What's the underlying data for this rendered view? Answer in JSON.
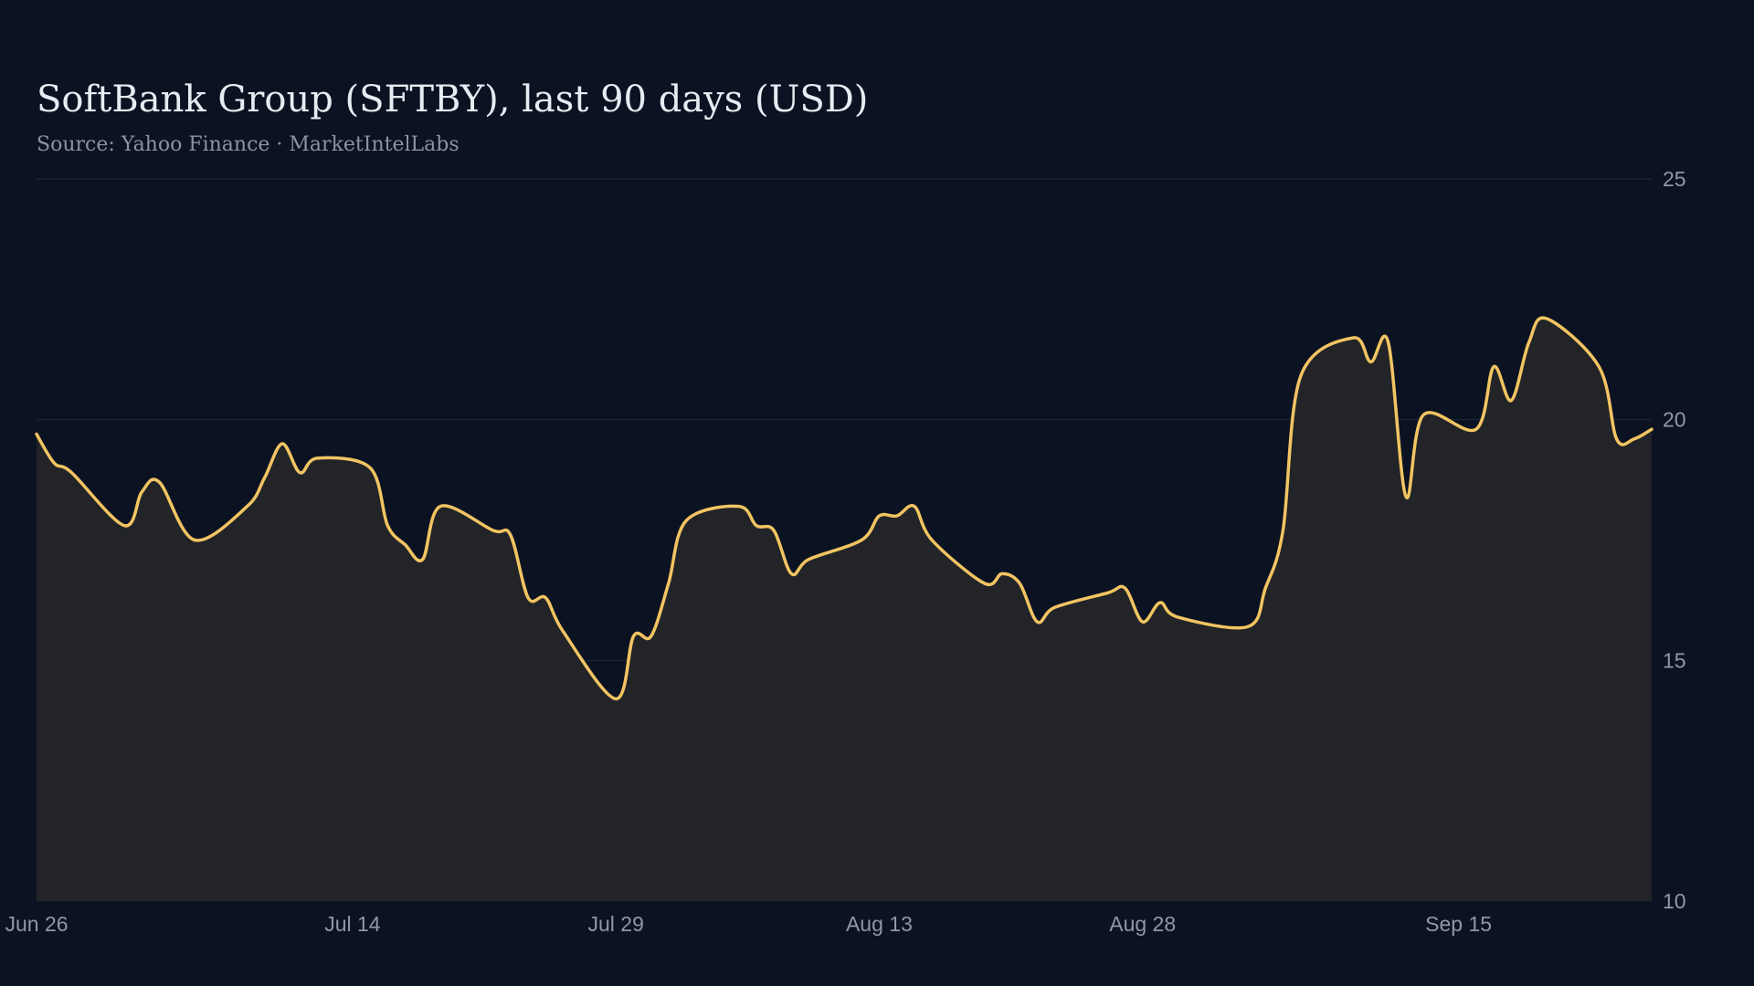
{
  "title": "SoftBank Group (SFTBY), last 90 days (USD)",
  "subtitle": "Source: Yahoo Finance · MarketIntelLabs",
  "colors": {
    "background": "#0b1222",
    "line": "#f2c462",
    "area": "#222427",
    "grid": "#1e2a36",
    "tick_text": "#8f98aa"
  },
  "chart_data": {
    "type": "area",
    "title": "SoftBank Group (SFTBY), last 90 days (USD)",
    "subtitle": "Source: Yahoo Finance · MarketIntelLabs",
    "xlabel": "",
    "ylabel": "",
    "ylim": [
      10,
      25
    ],
    "yticks": [
      10,
      15,
      20,
      25
    ],
    "y_axis_side": "right",
    "xlim": [
      "Jun 26",
      "Sep 26"
    ],
    "xticks": [
      "Jun 26",
      "Jul 14",
      "Jul 29",
      "Aug 13",
      "Aug 28",
      "Sep 15"
    ],
    "grid": "horizontal",
    "legend": "none",
    "series": [
      {
        "x": [
          "Jun 26",
          "Jun 27",
          "Jun 28",
          "Jul 1",
          "Jul 2",
          "Jul 3",
          "Jul 5",
          "Jul 8",
          "Jul 9",
          "Jul 10",
          "Jul 11",
          "Jul 12",
          "Jul 15",
          "Jul 16",
          "Jul 17",
          "Jul 18",
          "Jul 19",
          "Jul 22",
          "Jul 23",
          "Jul 24",
          "Jul 25",
          "Jul 26",
          "Jul 29",
          "Jul 30",
          "Jul 31",
          "Aug 1",
          "Aug 2",
          "Aug 5",
          "Aug 6",
          "Aug 7",
          "Aug 8",
          "Aug 9",
          "Aug 12",
          "Aug 13",
          "Aug 14",
          "Aug 15",
          "Aug 16",
          "Aug 19",
          "Aug 20",
          "Aug 21",
          "Aug 22",
          "Aug 23",
          "Aug 26",
          "Aug 27",
          "Aug 28",
          "Aug 29",
          "Aug 30",
          "Sep 3",
          "Sep 4",
          "Sep 5",
          "Sep 6",
          "Sep 9",
          "Sep 10",
          "Sep 11",
          "Sep 12",
          "Sep 13",
          "Sep 16",
          "Sep 17",
          "Sep 18",
          "Sep 19",
          "Sep 20",
          "Sep 23",
          "Sep 24",
          "Sep 25",
          "Sep 26"
        ],
        "values": [
          19.7,
          19.1,
          18.9,
          17.8,
          18.5,
          18.7,
          17.5,
          18.2,
          18.8,
          19.5,
          18.9,
          19.2,
          19.0,
          17.8,
          17.4,
          17.1,
          18.2,
          17.7,
          17.6,
          16.3,
          16.3,
          15.6,
          14.2,
          15.5,
          15.5,
          16.6,
          17.9,
          18.2,
          17.8,
          17.7,
          16.8,
          17.1,
          17.5,
          18.0,
          18.0,
          18.2,
          17.5,
          16.6,
          16.8,
          16.6,
          15.8,
          16.1,
          16.4,
          16.5,
          15.8,
          16.2,
          15.9,
          15.7,
          16.5,
          17.7,
          20.9,
          21.7,
          21.2,
          21.6,
          18.4,
          20.1,
          19.8,
          21.1,
          20.4,
          21.6,
          22.1,
          21.1,
          19.6,
          19.6,
          19.8
        ]
      }
    ]
  }
}
